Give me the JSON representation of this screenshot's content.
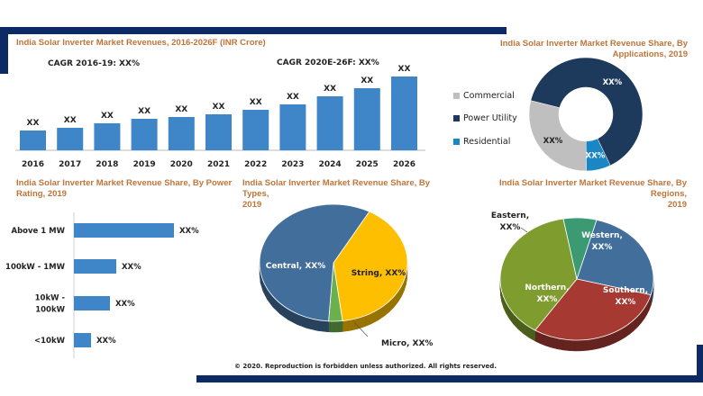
{
  "colors": {
    "accent": "#0c2a63",
    "title": "#c0743a",
    "bar": "#3f86c9"
  },
  "revenue": {
    "title": "India Solar Inverter Market Revenues, 2016-2026F (INR Crore)",
    "cagr1": "CAGR 2016-19: XX%",
    "cagr2": "CAGR 2020E-26F: XX%"
  },
  "applications": {
    "title_line1": "India Solar Inverter Market Revenue Share, By",
    "title_line2": "Applications, 2019"
  },
  "power": {
    "title_line1": "India Solar Inverter Market Revenue Share, By Power",
    "title_line2": "Rating, 2019"
  },
  "types": {
    "title_line1": "India Solar Inverter Market Revenue Share, By Types,",
    "title_line2": "2019"
  },
  "regions": {
    "title_line1": "India Solar Inverter Market Revenue Share, By Regions,",
    "title_line2": "2019"
  },
  "footer": {
    "copyright": "© 2020. Reproduction is forbidden unless authorized. All rights reserved."
  },
  "chart_data": [
    {
      "type": "bar",
      "title": "India Solar Inverter Market Revenues, 2016-2026F (INR Crore)",
      "categories": [
        "2016",
        "2017",
        "2018",
        "2019",
        "2020",
        "2021",
        "2022",
        "2023",
        "2024",
        "2025",
        "2026"
      ],
      "values": [
        22,
        25,
        30,
        35,
        37,
        40,
        45,
        51,
        60,
        69,
        82
      ],
      "data_labels": [
        "XX",
        "XX",
        "XX",
        "XX",
        "XX",
        "XX",
        "XX",
        "XX",
        "XX",
        "XX",
        "XX"
      ],
      "grid": false
    },
    {
      "type": "pie",
      "variant": "donut",
      "title": "India Solar Inverter Market Revenue Share, By Applications, 2019",
      "legend": "left",
      "slices": [
        {
          "name": "Power Utility",
          "value": 64,
          "label": "XX%",
          "color": "#1d3a5c"
        },
        {
          "name": "Residential",
          "value": 7,
          "label": "XX%",
          "color": "#1a86c4"
        },
        {
          "name": "Commercial",
          "value": 29,
          "label": "XX%",
          "color": "#bfbfbf"
        }
      ]
    },
    {
      "type": "bar",
      "orientation": "horizontal",
      "title": "India Solar Inverter Market Revenue Share, By Power Rating, 2019",
      "categories": [
        "Above 1 MW",
        "100kW - 1MW",
        "10kW - 100kW",
        "<10kW"
      ],
      "category_lines": [
        [
          "Above 1 MW"
        ],
        [
          "100kW - 1MW"
        ],
        [
          "10kW -",
          "100kW"
        ],
        [
          "<10kW"
        ]
      ],
      "values": [
        111,
        47,
        40,
        19
      ],
      "data_labels": [
        "XX%",
        "XX%",
        "XX%",
        "XX%"
      ]
    },
    {
      "type": "pie",
      "variant": "3d",
      "title": "India Solar Inverter Market Revenue Share, By Types, 2019",
      "slices": [
        {
          "name": "String",
          "value": 40,
          "label": "String, XX%",
          "color": "#fdbf00"
        },
        {
          "name": "Micro",
          "value": 3,
          "label": "Micro, XX%",
          "color": "#6ab04c"
        },
        {
          "name": "Central",
          "value": 57,
          "label": "Central, XX%",
          "color": "#426e9c"
        }
      ]
    },
    {
      "type": "pie",
      "variant": "3d",
      "title": "India Solar Inverter Market Revenue Share, By Regions, 2019",
      "slices": [
        {
          "name": "Western",
          "value": 25,
          "label_lines": [
            "Western,",
            "XX%"
          ],
          "color": "#426e9c"
        },
        {
          "name": "Southern",
          "value": 30,
          "label_lines": [
            "Southern,",
            "XX%"
          ],
          "color": "#a63a33"
        },
        {
          "name": "Northern",
          "value": 38,
          "label_lines": [
            "Northern,",
            "XX%"
          ],
          "color": "#7f9c2e"
        },
        {
          "name": "Eastern",
          "value": 7,
          "label_lines": [
            "Eastern,",
            "XX%"
          ],
          "color": "#3c9a73"
        }
      ]
    }
  ]
}
